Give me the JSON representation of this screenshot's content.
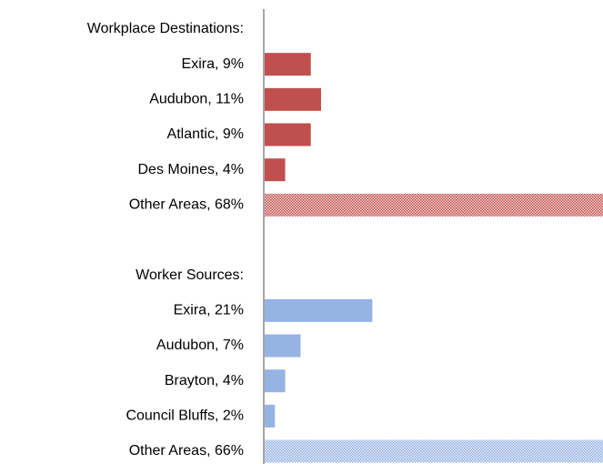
{
  "chart_data": {
    "type": "bar",
    "orientation": "horizontal",
    "categories": [
      null,
      "Exira, 9%",
      "Audubon, 11%",
      "Atlantic, 9%",
      "Des Moines, 4%",
      "Other Areas, 68%",
      null,
      null,
      "Exira, 21%",
      "Audubon, 7%",
      "Brayton, 4%",
      "Council Bluffs, 2%",
      "Other Areas, 66%"
    ],
    "series": [
      {
        "name": "Workplace Destinations:",
        "color": "#c0504d",
        "pattern_index": 5,
        "values": [
          null,
          9,
          11,
          9,
          4,
          68,
          null,
          null,
          null,
          null,
          null,
          null,
          null
        ]
      },
      {
        "name": "Worker Sources:",
        "color": "#95b3e3",
        "pattern_index": 12,
        "values": [
          null,
          null,
          null,
          null,
          null,
          null,
          null,
          null,
          21,
          7,
          4,
          2,
          66
        ]
      }
    ],
    "xlim": [
      0,
      66
    ]
  }
}
